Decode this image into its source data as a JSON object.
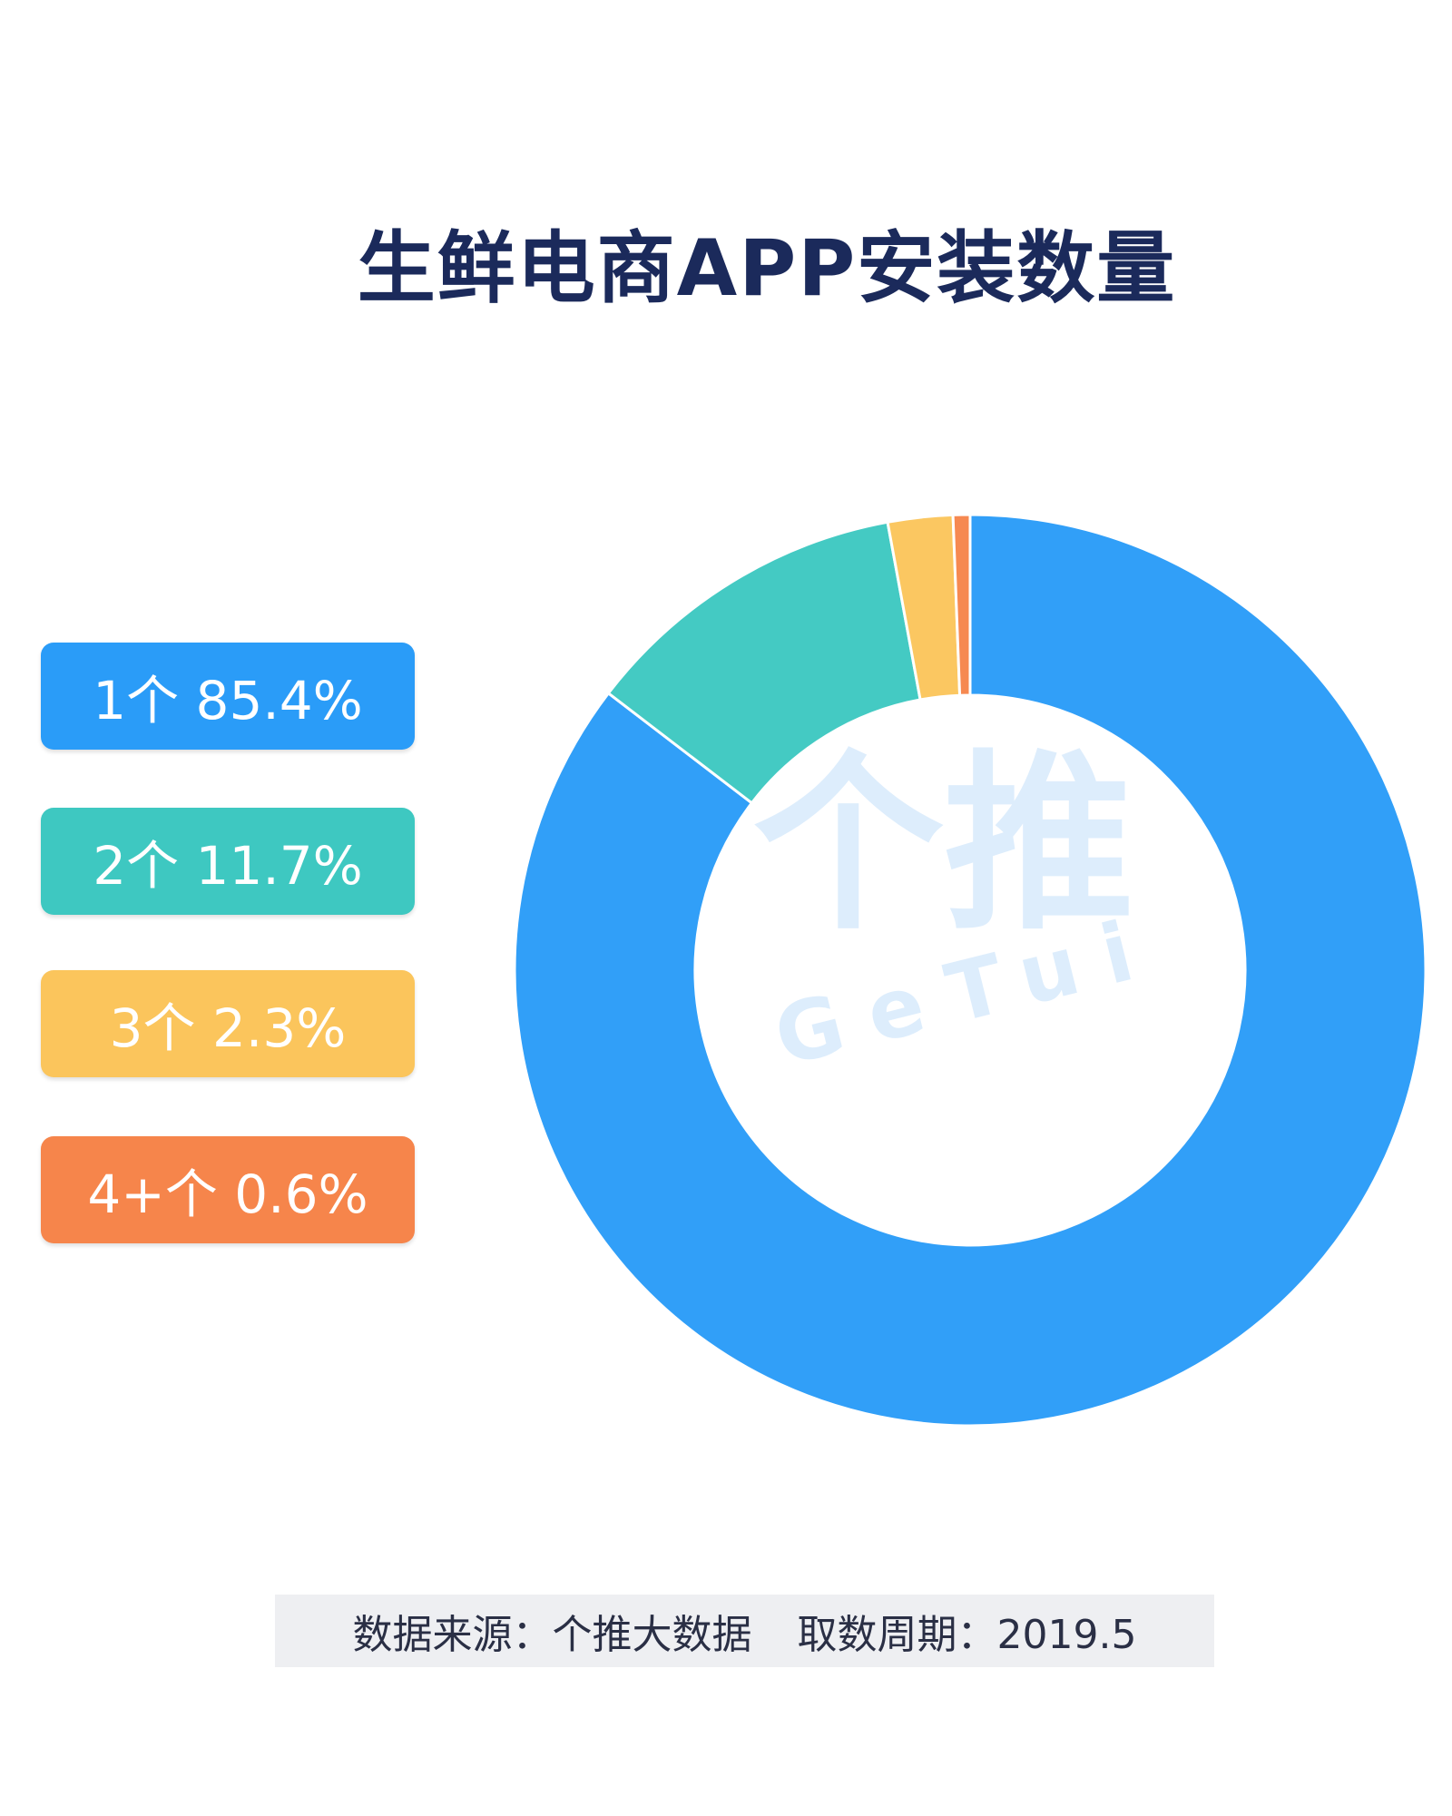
{
  "chart_data": {
    "type": "pie",
    "variant": "donut",
    "title": "生鲜电商APP安装数量",
    "categories": [
      "1个",
      "2个",
      "3个",
      "4+个"
    ],
    "values": [
      85.4,
      11.7,
      2.3,
      0.6
    ],
    "unit": "%",
    "labels": [
      "1个 85.4%",
      "2个 11.7%",
      "3个 2.3%",
      "4+个 0.6%"
    ],
    "colors": [
      "#2a9cf8",
      "#3ec8c1",
      "#fbc55c",
      "#f6854b"
    ],
    "start": "top",
    "direction": "clockwise",
    "legend_placement": "left"
  },
  "footer": {
    "source": "数据来源：个推大数据",
    "period": "取数周期：2019.5"
  },
  "watermark": {
    "cn": "个推",
    "en": "GeTui"
  }
}
